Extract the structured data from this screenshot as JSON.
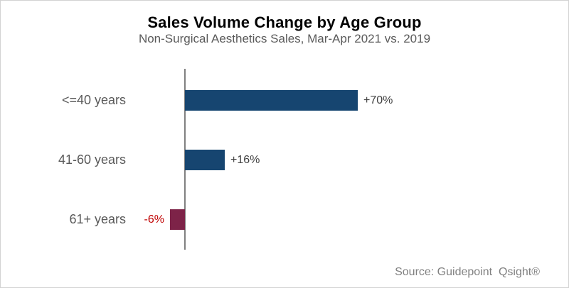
{
  "title": "Sales Volume Change by Age Group",
  "subtitle": "Non-Surgical Aesthetics Sales, Mar-Apr 2021 vs. 2019",
  "source": "Source: Guidepoint  Qsight®",
  "chart_data": {
    "type": "bar",
    "orientation": "horizontal",
    "title": "Sales Volume Change by Age Group",
    "subtitle": "Non-Surgical Aesthetics Sales, Mar-Apr 2021 vs. 2019",
    "categories": [
      "<=40 years",
      "41-60 years",
      "61+ years"
    ],
    "values": [
      70,
      16,
      -6
    ],
    "value_labels": [
      "+70%",
      "+16%",
      "-6%"
    ],
    "unit": "percent change",
    "xlim": [
      -10,
      80
    ],
    "grid": false,
    "legend": false,
    "baseline_axis": "vertical zero line",
    "colors": {
      "positive_bar": "#164570",
      "negative_bar": "#7d2348",
      "value_label": "#404040",
      "negative_label": "#c00000",
      "category_label": "#595959",
      "axis_line": "#808080",
      "subtitle_text": "#595959",
      "source_text": "#808080"
    }
  }
}
